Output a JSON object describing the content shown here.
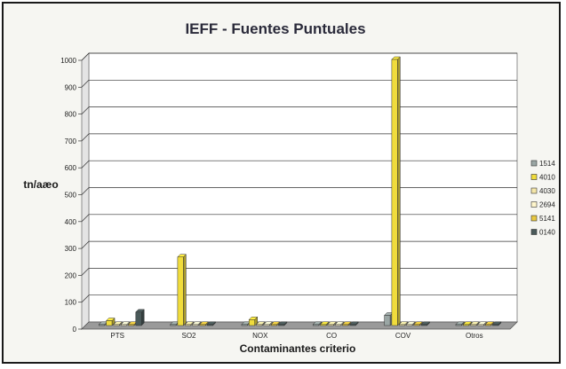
{
  "chart_data": {
    "type": "bar",
    "title": "IEFF - Fuentes Puntuales",
    "xlabel": "Contaminantes criterio",
    "ylabel": "tn/aæo",
    "ylim": [
      0,
      1000
    ],
    "yticks": [
      0,
      100,
      200,
      300,
      400,
      500,
      600,
      700,
      800,
      900,
      1000
    ],
    "categories": [
      "PTS",
      "SO2",
      "NOX",
      "CO",
      "COV",
      "Otros"
    ],
    "series": [
      {
        "name": "1514",
        "color": "#9aa6a4",
        "values": [
          1,
          2,
          1,
          0,
          38,
          0
        ]
      },
      {
        "name": "4010",
        "color": "#f0dc3c",
        "values": [
          18,
          255,
          22,
          0,
          990,
          0
        ]
      },
      {
        "name": "4030",
        "color": "#f4e6a8",
        "values": [
          0,
          0,
          0,
          0,
          0,
          0
        ]
      },
      {
        "name": "2694",
        "color": "#fff6cc",
        "values": [
          0,
          0,
          0,
          0,
          0,
          0
        ]
      },
      {
        "name": "5141",
        "color": "#e8c840",
        "values": [
          0,
          0,
          0,
          0,
          0,
          0
        ]
      },
      {
        "name": "0140",
        "color": "#4a5a5a",
        "values": [
          50,
          0,
          0,
          0,
          0,
          0
        ]
      }
    ],
    "grid": true,
    "legend_position": "right"
  }
}
